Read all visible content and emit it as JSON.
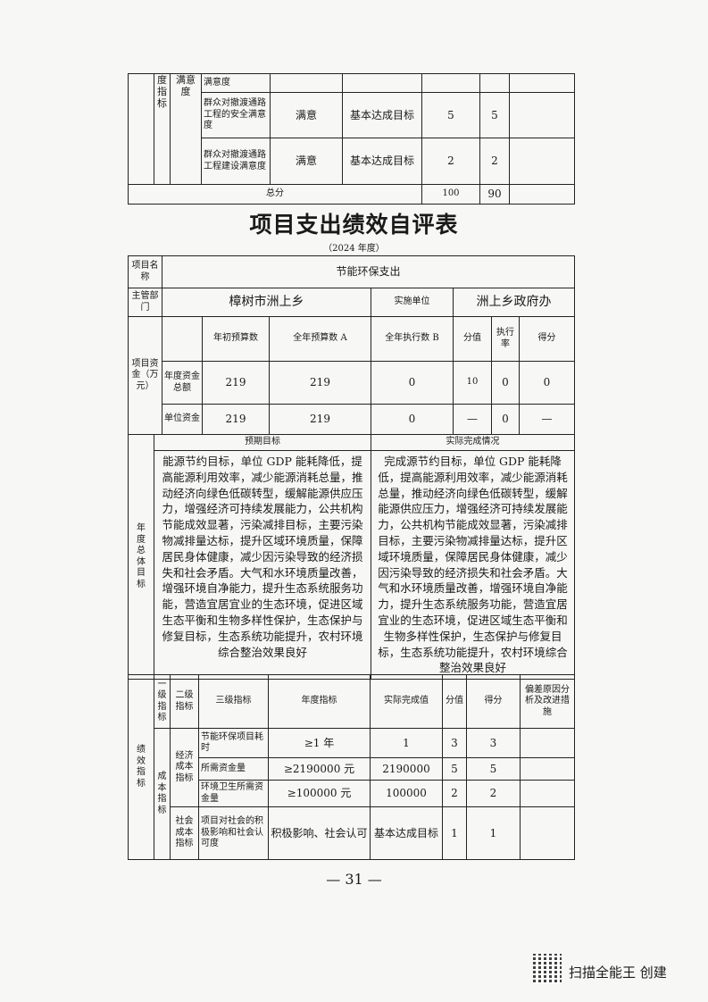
{
  "top_table": {
    "col2": "度指标",
    "col3": "满意度",
    "rows": [
      {
        "indicator": "满意度",
        "target": "",
        "actual": "",
        "score": "",
        "got": ""
      },
      {
        "indicator": "群众对撤渡通路工程的安全满意度",
        "target": "满意",
        "actual": "基本达成目标",
        "score": "5",
        "got": "5"
      },
      {
        "indicator": "群众对撤渡通路工程建设满意度",
        "target": "满意",
        "actual": "基本达成目标",
        "score": "2",
        "got": "2"
      }
    ],
    "total_label": "总分",
    "total_score": "100",
    "total_got": "90"
  },
  "title": "项目支出绩效自评表",
  "year": "（2024 年度）",
  "info": {
    "name_label": "项目名称",
    "name": "节能环保支出",
    "dept_label": "主管部门",
    "dept": "樟树市洲上乡",
    "impl_label": "实施单位",
    "impl": "洲上乡政府办"
  },
  "funds": {
    "label": "项目资金（万元）",
    "headers": [
      "年初预算数",
      "全年预算数 A",
      "全年执行数 B",
      "分值",
      "执行率",
      "得分"
    ],
    "rows": [
      {
        "label": "年度资金总额",
        "values": [
          "219",
          "219",
          "0",
          "10",
          "0",
          "0"
        ]
      },
      {
        "label": "单位资金",
        "values": [
          "219",
          "219",
          "0",
          "—",
          "0",
          "—"
        ]
      }
    ]
  },
  "goals": {
    "label": "年度总体目标",
    "expected_header": "预期目标",
    "actual_header": "实际完成情况",
    "expected": "能源节约目标，单位 GDP 能耗降低，提高能源利用效率，减少能源消耗总量，推动经济向绿色低碳转型，缓解能源供应压力，增强经济可持续发展能力，公共机构节能成效显著，污染减排目标，主要污染物减排量达标，提升区域环境质量，保障居民身体健康，减少因污染导致的经济损失和社会矛盾。大气和水环境质量改善，增强环境自净能力，提升生态系统服务功能，营造宜居宜业的生态环境，促进区域生态平衡和生物多样性保护，生态保护与修复目标，生态系统功能提升，农村环境综合整治效果良好",
    "actual": "完成源节约目标，单位 GDP 能耗降低，提高能源利用效率，减少能源消耗总量，推动经济向绿色低碳转型，缓解能源供应压力，增强经济可持续发展能力，公共机构节能成效显著，污染减排目标，主要污染物减排量达标，提升区域环境质量，保障居民身体健康，减少因污染导致的经济损失和社会矛盾。大气和水环境质量改善，增强环境自净能力，提升生态系统服务功能，营造宜居宜业的生态环境，促进区域生态平衡和生物多样性保护，生态保护与修复目标，生态系统功能提升，农村环境综合整治效果良好"
  },
  "indicators": {
    "label": "绩效指标",
    "headers": [
      "一级指标",
      "二级指标",
      "三级指标",
      "年度指标",
      "实际完成值",
      "分值",
      "得分",
      "偏差原因分析及改进措施"
    ],
    "level1": "成本指标",
    "econ": "经济成本指标",
    "social": "社会成本指标",
    "rows": [
      {
        "l3": "节能环保项目耗时",
        "target": "≥1 年",
        "actual": "1",
        "score": "3",
        "got": "3",
        "note": ""
      },
      {
        "l3": "所需资金量",
        "target": "≥2190000 元",
        "actual": "2190000",
        "score": "5",
        "got": "5",
        "note": ""
      },
      {
        "l3": "环境卫生所需资金量",
        "target": "≥100000 元",
        "actual": "100000",
        "score": "2",
        "got": "2",
        "note": ""
      },
      {
        "l3": "项目对社会的积极影响和社会认可度",
        "target": "积极影响、社会认可",
        "actual": "基本达成目标",
        "score": "1",
        "got": "1",
        "note": ""
      }
    ]
  },
  "page_number": "— 31 —",
  "watermark": "扫描全能王 创建"
}
